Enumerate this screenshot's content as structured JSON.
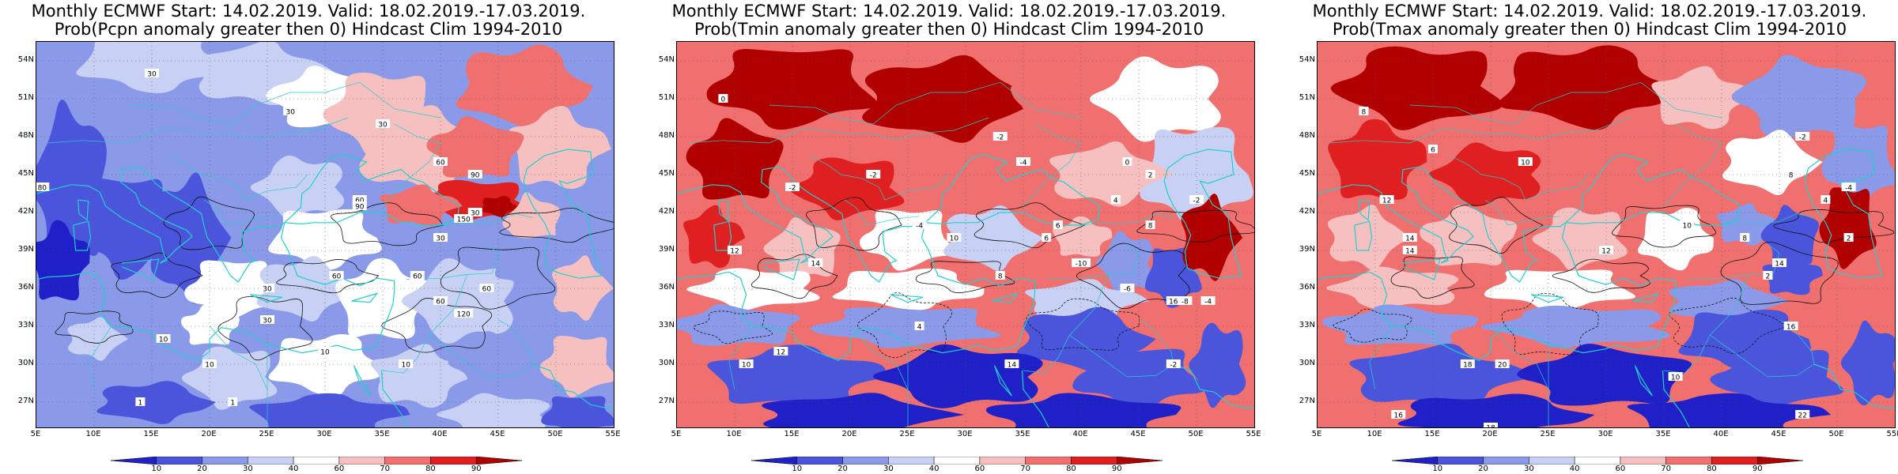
{
  "panels": [
    {
      "title1": "Monthly ECMWF Start: 14.02.2019. Valid: 18.02.2019.-17.03.2019.",
      "title2": "Prob(Pcpn anomaly greater then 0) Hindcast Clim 1994-2010",
      "variable": "precipitation"
    },
    {
      "title1": "Monthly ECMWF Start: 14.02.2019. Valid: 18.02.2019.-17.03.2019.",
      "title2": "Prob(Tmin anomaly greater then 0) Hindcast Clim 1994-2010",
      "variable": "tmin"
    },
    {
      "title1": "Monthly ECMWF Start: 14.02.2019. Valid: 18.02.2019.-17.03.2019.",
      "title2": "Prob(Tmax anomaly greater then 0) Hindcast Clim 1994-2010",
      "variable": "tmax"
    }
  ],
  "lat_labels": [
    "54N",
    "51N",
    "48N",
    "45N",
    "42N",
    "39N",
    "36N",
    "33N",
    "30N",
    "27N"
  ],
  "lon_labels": [
    "5E",
    "10E",
    "15E",
    "20E",
    "25E",
    "30E",
    "35E",
    "40E",
    "45E",
    "50E",
    "55E"
  ],
  "colorbar": {
    "labels": [
      "10",
      "20",
      "30",
      "40",
      "60",
      "70",
      "80",
      "90"
    ],
    "colors": [
      "#2020c8",
      "#4a55dc",
      "#8a9ae8",
      "#c8d0f4",
      "#ffffff",
      "#f6c0c0",
      "#f07070",
      "#e02020",
      "#b00000"
    ]
  },
  "contour_labels": {
    "precipitation": [
      "30",
      "30",
      "30",
      "60",
      "60",
      "90",
      "90",
      "60",
      "30",
      "10",
      "10",
      "30",
      "30",
      "60",
      "60",
      "120",
      "150",
      "30",
      "60",
      "10",
      "1",
      "1",
      "10",
      "80"
    ],
    "tmin": [
      "0",
      "-2",
      "-4",
      "-2",
      "-2",
      "-4",
      "0",
      "2",
      "4",
      "6",
      "8",
      "10",
      "12",
      "14",
      "12",
      "10",
      "16",
      "14",
      "-2",
      "-4",
      "-6",
      "-8",
      "-10",
      "4",
      "6",
      "8",
      "-2"
    ],
    "tmax": [
      "6",
      "8",
      "10",
      "12",
      "14",
      "12",
      "10",
      "8",
      "4",
      "2",
      "-2",
      "-4",
      "14",
      "16",
      "18",
      "20",
      "22",
      "18",
      "16",
      "10",
      "8",
      "2",
      "14"
    ]
  }
}
